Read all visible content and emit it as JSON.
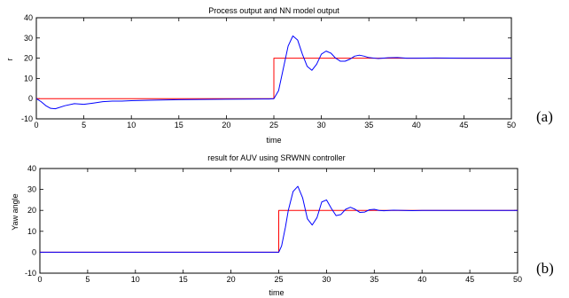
{
  "chart_data": [
    {
      "type": "line",
      "title": "Process output and NN model output",
      "xlabel": "time",
      "ylabel": "r",
      "xlim": [
        0,
        50
      ],
      "ylim": [
        -10,
        40
      ],
      "xticks": [
        "0",
        "5",
        "10",
        "15",
        "20",
        "25",
        "30",
        "35",
        "40",
        "45",
        "50"
      ],
      "yticks": [
        "-10",
        "0",
        "10",
        "20",
        "30",
        "40"
      ],
      "panel_label": "(a)",
      "grid": false,
      "series": [
        {
          "color": "#ff0000",
          "x": [
            0,
            25,
            25,
            50
          ],
          "y": [
            0,
            0,
            20,
            20
          ]
        },
        {
          "color": "#0000ff",
          "x": [
            0,
            0.5,
            1,
            1.5,
            2,
            3,
            4,
            5,
            6,
            7,
            8,
            9,
            10,
            12,
            15,
            20,
            24,
            24.5,
            25,
            25.5,
            26,
            26.5,
            27,
            27.5,
            28,
            28.5,
            29,
            29.5,
            30,
            30.5,
            31,
            31.5,
            32,
            32.5,
            33,
            33.5,
            34,
            34.5,
            35,
            36,
            37,
            38,
            39,
            40,
            42,
            45,
            50
          ],
          "y": [
            0,
            -1.5,
            -3.5,
            -4.8,
            -5,
            -3.5,
            -2.5,
            -2.8,
            -2.2,
            -1.5,
            -1.2,
            -1.2,
            -1,
            -0.8,
            -0.5,
            -0.3,
            -0.2,
            -0.2,
            0,
            4,
            15,
            26,
            31,
            29,
            22,
            16,
            14,
            17,
            22,
            23.5,
            22.5,
            20,
            18.5,
            18.5,
            19.5,
            21,
            21.5,
            21,
            20.3,
            19.8,
            20.2,
            20.3,
            20,
            20,
            20.1,
            20,
            20
          ]
        }
      ]
    },
    {
      "type": "line",
      "title": "result for AUV using SRWNN controller",
      "xlabel": "time",
      "ylabel": "Yaw angle",
      "xlim": [
        0,
        50
      ],
      "ylim": [
        -10,
        40
      ],
      "xticks": [
        "0",
        "5",
        "10",
        "15",
        "20",
        "25",
        "30",
        "35",
        "40",
        "45",
        "50"
      ],
      "yticks": [
        "-10",
        "0",
        "10",
        "20",
        "30",
        "40"
      ],
      "panel_label": "(b)",
      "grid": false,
      "series": [
        {
          "color": "#ff0000",
          "x": [
            0,
            25,
            25,
            50
          ],
          "y": [
            0,
            0,
            20,
            20
          ]
        },
        {
          "color": "#0000ff",
          "x": [
            0,
            25,
            25.3,
            25.7,
            26,
            26.5,
            27,
            27.5,
            28,
            28.5,
            29,
            29.5,
            30,
            30.5,
            31,
            31.5,
            32,
            32.5,
            33,
            33.5,
            34,
            34.5,
            35,
            35.5,
            36,
            37,
            38,
            39,
            40,
            42,
            45,
            50
          ],
          "y": [
            0,
            0,
            3,
            12,
            20,
            29,
            31.5,
            26,
            16,
            13,
            16.5,
            24,
            25,
            21,
            17.5,
            18,
            20.5,
            21.5,
            20.5,
            19,
            19.2,
            20.3,
            20.5,
            20,
            19.8,
            20.1,
            20,
            19.9,
            20,
            20,
            20,
            20
          ]
        }
      ]
    }
  ]
}
